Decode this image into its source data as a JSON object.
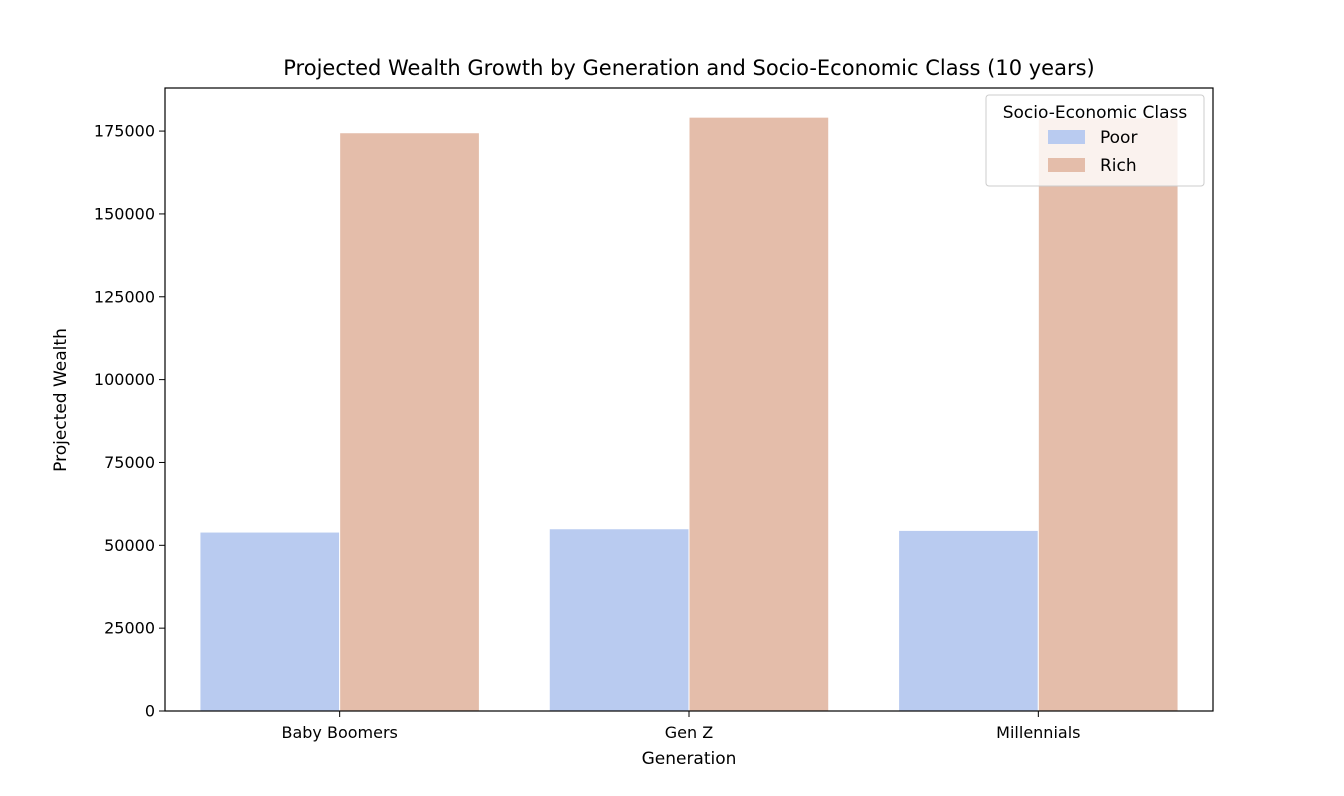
{
  "chart_data": {
    "type": "bar",
    "title": "Projected Wealth Growth by Generation and Socio-Economic Class (10 years)",
    "xlabel": "Generation",
    "ylabel": "Projected Wealth",
    "categories": [
      "Baby Boomers",
      "Gen Z",
      "Millennials"
    ],
    "series": [
      {
        "name": "Poor",
        "color": "#b9cbf0",
        "values": [
          54000,
          55000,
          54500
        ]
      },
      {
        "name": "Rich",
        "color": "#e4bdaa",
        "values": [
          174500,
          179200,
          179000
        ]
      }
    ],
    "ylim": [
      0,
      188000
    ],
    "yticks": [
      0,
      25000,
      50000,
      75000,
      100000,
      125000,
      150000,
      175000
    ],
    "grid": false,
    "legend": {
      "title": "Socio-Economic Class",
      "placement": "top-right"
    }
  }
}
